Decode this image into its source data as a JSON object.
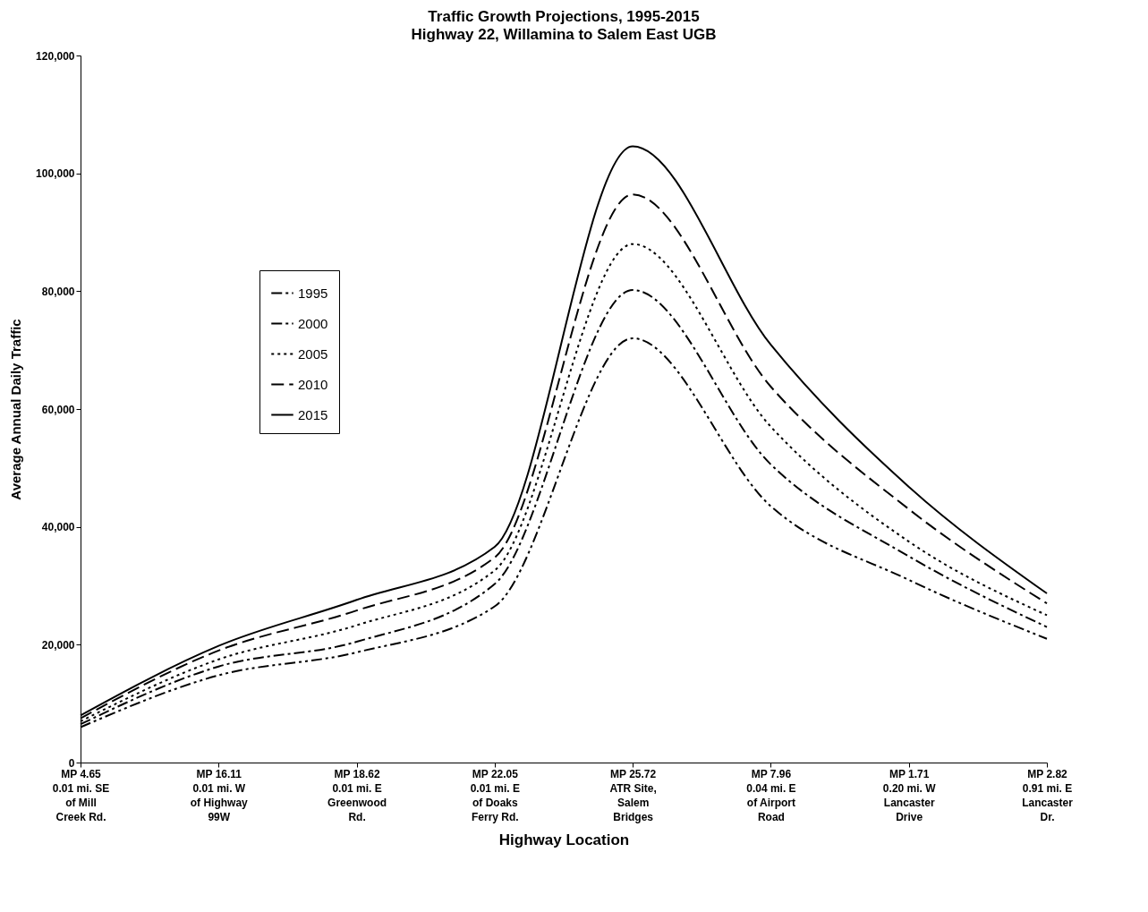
{
  "chart_data": {
    "type": "line",
    "title": "Traffic Growth Projections, 1995-2015",
    "subtitle": "Highway 22, Willamina to Salem East UGB",
    "xlabel": "Highway Location",
    "ylabel": "Average Annual Daily Traffic",
    "categories": [
      "MP 4.65\n0.01 mi. SE\nof Mill\nCreek Rd.",
      "MP 16.11\n0.01 mi. W\nof Highway\n99W",
      "MP 18.62\n0.01 mi. E\nGreenwood\nRd.",
      "MP 22.05\n0.01 mi. E\nof Doaks\nFerry Rd.",
      "MP 25.72\nATR Site,\nSalem\nBridges",
      "MP 7.96\n0.04 mi. E\nof Airport\nRoad",
      "MP 1.71\n0.20 mi. W\nLancaster\nDrive",
      "MP 2.82\n0.91 mi. E\nLancaster\nDr."
    ],
    "series": [
      {
        "name": "1995",
        "color": "#000000",
        "line_style": "dashdotdot",
        "values": [
          6000,
          14800,
          18700,
          26500,
          72000,
          43500,
          31000,
          21000
        ]
      },
      {
        "name": "2000",
        "color": "#000000",
        "line_style": "dashdot",
        "values": [
          6500,
          16300,
          20500,
          30300,
          80200,
          50600,
          35000,
          23000
        ]
      },
      {
        "name": "2005",
        "color": "#000000",
        "line_style": "dotted",
        "values": [
          7000,
          17500,
          23300,
          32600,
          88000,
          57000,
          37500,
          25000
        ]
      },
      {
        "name": "2010",
        "color": "#000000",
        "line_style": "dashed",
        "values": [
          7500,
          19000,
          25800,
          34800,
          96400,
          63800,
          43000,
          27000
        ]
      },
      {
        "name": "2015",
        "color": "#000000",
        "line_style": "solid",
        "values": [
          8000,
          19800,
          27600,
          36600,
          104600,
          70900,
          46800,
          28700
        ]
      }
    ],
    "ylim": [
      0,
      120000
    ],
    "yticks": [
      0,
      {
        "value": 20000,
        "label": "20,000"
      },
      {
        "value": 40000,
        "label": "40,000"
      },
      {
        "value": 60000,
        "label": "60,000"
      },
      {
        "value": 80000,
        "label": "80,000"
      },
      {
        "value": 100000,
        "label": "100,000"
      },
      {
        "value": 120000,
        "label": "120,000"
      }
    ],
    "grid": false,
    "legend": "left"
  }
}
